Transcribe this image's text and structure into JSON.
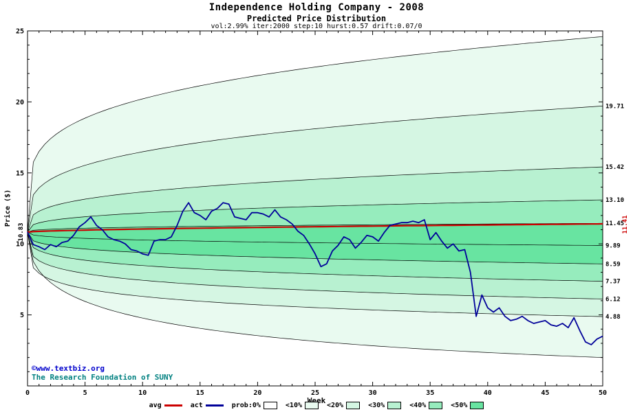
{
  "title": "Independence Holding Company - 2008",
  "subtitle": "Predicted Price Distribution",
  "params": "vol:2.99% iter:2000 step:10 hurst:0.57 drift:0.07/0",
  "watermark": {
    "line1": "©www.textbiz.org",
    "line2": "The Research Foundation of SUNY"
  },
  "axes": {
    "x_label": "Week",
    "y_label": "Price ($)",
    "x_ticks": [
      0,
      5,
      10,
      15,
      20,
      25,
      30,
      35,
      40,
      45,
      50
    ],
    "y_ticks": [
      5,
      10,
      15,
      20,
      25
    ],
    "x_range": [
      0,
      50
    ],
    "y_range": [
      0,
      25
    ]
  },
  "annotations": {
    "start_price": "10.83",
    "end_avg": "11.41"
  },
  "legend": {
    "avg_label": "avg",
    "act_label": "act",
    "prob_label": "prob:0%",
    "band_labels": [
      "<10%",
      "<20%",
      "<30%",
      "<40%",
      "<50%"
    ]
  },
  "colors": {
    "avg_line": "#cc0000",
    "act_line": "#000099",
    "boundary_line": "#000000",
    "frame": "#000000",
    "band_shades": [
      "#e9faf0",
      "#d5f6e3",
      "#b8f1d1",
      "#96ecbd",
      "#68e4a1"
    ],
    "watermark1": "#0000cc",
    "watermark2": "#008080"
  },
  "chart_data": {
    "type": "area",
    "description": "Monte Carlo fan chart of predicted price distribution bands with average and actual price lines",
    "start_price": 10.83,
    "weeks": 50,
    "avg_line": {
      "end": 11.41,
      "alpha": 0.6
    },
    "bands": {
      "boundaries": [
        {
          "end": 24.6,
          "alpha": 0.17,
          "label": null
        },
        {
          "end": 19.71,
          "alpha": 0.22,
          "label": "19.71"
        },
        {
          "end": 15.42,
          "alpha": 0.26,
          "label": "15.42"
        },
        {
          "end": 13.1,
          "alpha": 0.3,
          "label": "13.10"
        },
        {
          "end": 11.45,
          "alpha": 0.34,
          "label": "11.45"
        },
        {
          "end": 9.89,
          "alpha": 0.34,
          "label": "9.89"
        },
        {
          "end": 8.59,
          "alpha": 0.3,
          "label": "8.59"
        },
        {
          "end": 7.37,
          "alpha": 0.28,
          "label": "7.37"
        },
        {
          "end": 6.12,
          "alpha": 0.26,
          "label": "6.12"
        },
        {
          "end": 4.88,
          "alpha": 0.24,
          "label": "4.88"
        },
        {
          "end": 2.0,
          "alpha": 0.45,
          "label": null
        }
      ],
      "shade_index": [
        0,
        1,
        2,
        3,
        4,
        4,
        3,
        2,
        1,
        0
      ]
    },
    "actual": {
      "x_step": 0.5,
      "prices": [
        10.83,
        9.95,
        9.8,
        9.6,
        9.95,
        9.8,
        10.1,
        10.2,
        10.6,
        11.2,
        11.5,
        11.9,
        11.3,
        11.0,
        10.5,
        10.3,
        10.2,
        10.0,
        9.6,
        9.5,
        9.3,
        9.2,
        10.2,
        10.3,
        10.3,
        10.5,
        11.3,
        12.3,
        12.9,
        12.2,
        12.0,
        11.7,
        12.3,
        12.5,
        12.9,
        12.8,
        11.9,
        11.8,
        11.7,
        12.2,
        12.2,
        12.1,
        11.9,
        12.4,
        11.9,
        11.7,
        11.4,
        10.9,
        10.6,
        10.0,
        9.3,
        8.4,
        8.6,
        9.5,
        9.9,
        10.5,
        10.3,
        9.7,
        10.1,
        10.6,
        10.5,
        10.2,
        10.8,
        11.3,
        11.4,
        11.5,
        11.5,
        11.6,
        11.5,
        11.7,
        10.3,
        10.8,
        10.2,
        9.7,
        10.0,
        9.5,
        9.6,
        8.0,
        4.9,
        6.4,
        5.5,
        5.2,
        5.5,
        4.9,
        4.6,
        4.7,
        4.9,
        4.6,
        4.4,
        4.5,
        4.6,
        4.3,
        4.2,
        4.4,
        4.1,
        4.8,
        3.9,
        3.1,
        2.9,
        3.3,
        3.5
      ]
    }
  }
}
